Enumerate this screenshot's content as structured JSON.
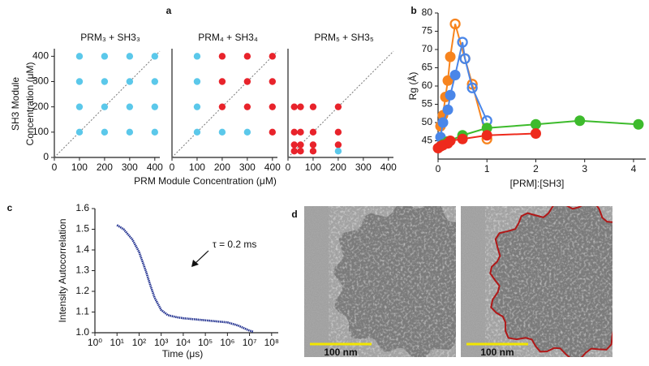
{
  "chart_data": [
    {
      "type": "scatter",
      "panel": "a",
      "title": "PRM₃ + SH3₃",
      "ylabel": [
        "SH3 Module",
        "Concentration (μM)"
      ],
      "xlim": [
        0,
        420
      ],
      "ylim": [
        0,
        430
      ],
      "xticks": [
        0,
        100,
        200,
        300,
        400
      ],
      "yticks": [
        0,
        100,
        200,
        300,
        400
      ],
      "diagonal": true,
      "series": [
        {
          "color": "#5bc8ea",
          "x": [
            100,
            200,
            300,
            400,
            100,
            200,
            300,
            400,
            100,
            200,
            300,
            400,
            100,
            200,
            300,
            400
          ],
          "y": [
            100,
            100,
            100,
            100,
            200,
            200,
            200,
            200,
            300,
            300,
            300,
            300,
            400,
            400,
            400,
            400
          ]
        }
      ]
    },
    {
      "type": "scatter",
      "title": "PRM₄ + SH3₄",
      "xlabel": "PRM Module Concentration (μM)",
      "xlim": [
        0,
        420
      ],
      "ylim": [
        0,
        430
      ],
      "xticks": [
        0,
        100,
        200,
        300,
        400
      ],
      "diagonal": true,
      "series": [
        {
          "color": "#5bc8ea",
          "x": [
            100,
            100,
            100,
            100,
            200,
            300
          ],
          "y": [
            100,
            200,
            300,
            400,
            100,
            100
          ]
        },
        {
          "color": "#e8232b",
          "x": [
            400,
            200,
            300,
            400,
            200,
            300,
            400,
            200,
            300,
            400
          ],
          "y": [
            100,
            200,
            200,
            200,
            300,
            300,
            300,
            400,
            400,
            400
          ]
        }
      ]
    },
    {
      "type": "scatter",
      "title": "PRM₅ + SH3₅",
      "xlim": [
        0,
        420
      ],
      "ylim": [
        0,
        430
      ],
      "xticks": [
        0,
        100,
        200,
        300,
        400
      ],
      "diagonal": true,
      "series": [
        {
          "color": "#e8232b",
          "x": [
            25,
            50,
            100,
            200,
            25,
            50,
            100,
            200,
            25,
            50,
            100,
            200,
            25,
            50,
            100
          ],
          "y": [
            200,
            200,
            200,
            200,
            100,
            100,
            100,
            100,
            50,
            50,
            50,
            50,
            25,
            25,
            25
          ]
        },
        {
          "color": "#5bc8ea",
          "x": [
            200
          ],
          "y": [
            25
          ]
        }
      ]
    },
    {
      "type": "line",
      "panel": "b",
      "ylabel": "Rg (Å)",
      "xlabel": "[PRM]:[SH3]",
      "xlim": [
        0,
        4.25
      ],
      "ylim": [
        40,
        80
      ],
      "xticks": [
        0,
        1,
        2,
        3,
        4
      ],
      "yticks": [
        45,
        50,
        55,
        60,
        65,
        70,
        75,
        80
      ],
      "series": [
        {
          "color": "#f7841e",
          "x": [
            0.05,
            0.1,
            0.15,
            0.2,
            0.25,
            0.35,
            0.55,
            0.7,
            1.0
          ],
          "y": [
            49,
            52,
            57,
            61.5,
            68,
            77,
            67.5,
            60.5,
            45.5
          ],
          "open": [
            false,
            false,
            false,
            false,
            false,
            true,
            true,
            true,
            true
          ]
        },
        {
          "color": "#4a86e8",
          "x": [
            0.05,
            0.1,
            0.2,
            0.25,
            0.35,
            0.5,
            0.55,
            0.7,
            1.0
          ],
          "y": [
            46,
            50,
            53.5,
            57.5,
            63,
            72,
            67.5,
            59.5,
            50.5
          ],
          "open": [
            false,
            false,
            false,
            false,
            false,
            true,
            true,
            true,
            true
          ]
        },
        {
          "color": "#3dbb2c",
          "x": [
            0.05,
            0.1,
            0.2,
            0.5,
            1,
            2,
            2.9,
            4.1
          ],
          "y": [
            43.5,
            44,
            44.8,
            46.5,
            48.5,
            49.5,
            50.5,
            49.5
          ],
          "open": [
            false,
            false,
            false,
            false,
            false,
            false,
            false,
            false
          ]
        },
        {
          "color": "#ee2a1c",
          "x": [
            0,
            0.05,
            0.1,
            0.2,
            0.25,
            0.5,
            1,
            2
          ],
          "y": [
            43,
            43.5,
            43.8,
            44.3,
            45,
            45.5,
            46.5,
            47
          ],
          "open": [
            false,
            false,
            false,
            false,
            false,
            false,
            false,
            false
          ]
        }
      ]
    },
    {
      "type": "line",
      "panel": "c",
      "log_x": true,
      "ylabel": "Intensity Autocorrelation",
      "xlabel": "Time (μs)",
      "annotation": "τ = 0.2 ms",
      "xlim": [
        1,
        200000000
      ],
      "ylim": [
        1.0,
        1.6
      ],
      "xticks": [
        {
          "value": 1,
          "label": "10⁰"
        },
        {
          "value": 10,
          "label": "10¹"
        },
        {
          "value": 100,
          "label": "10²"
        },
        {
          "value": 1000,
          "label": "10³"
        },
        {
          "value": 10000,
          "label": "10⁴"
        },
        {
          "value": 100000,
          "label": "10⁵"
        },
        {
          "value": 1000000,
          "label": "10⁶"
        },
        {
          "value": 10000000,
          "label": "10⁷"
        },
        {
          "value": 100000000,
          "label": "10⁸"
        }
      ],
      "yticks": [
        {
          "value": 1.0,
          "label": "1.0"
        },
        1.1,
        1.2,
        1.3,
        1.4,
        1.5,
        1.6
      ],
      "series": [
        {
          "color": "#1a2a8c",
          "x": [
            10,
            20,
            50,
            100,
            200,
            300,
            500,
            1000,
            2000,
            5000,
            10000,
            100000,
            1000000,
            3000000,
            10000000,
            15000000
          ],
          "y": [
            1.52,
            1.5,
            1.45,
            1.39,
            1.3,
            1.24,
            1.17,
            1.11,
            1.085,
            1.075,
            1.07,
            1.06,
            1.05,
            1.035,
            1.01,
            1.005
          ]
        }
      ]
    },
    {
      "type": "image",
      "panel": "d",
      "scale_labels": [
        "100 nm",
        "100 nm"
      ]
    }
  ]
}
